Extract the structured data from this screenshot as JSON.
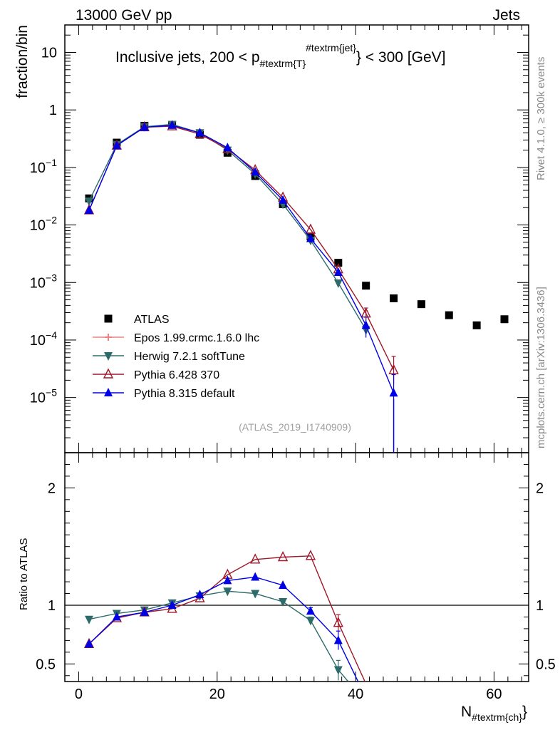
{
  "header": {
    "left": "13000 GeV pp",
    "right": "Jets"
  },
  "side_text": {
    "top": "Rivet 4.1.0, ≥ 300k events",
    "bottom": "mcplots.cern.ch [arXiv:1306.3436]"
  },
  "chart_data": {
    "type": "line",
    "title_main": "Inclusive jets, 200 < p",
    "title_sub": "#textrm{T}",
    "title_sup": "#textrm{jet}",
    "title_tail": "} < 300 [GeV]",
    "analysis_id": "(ATLAS_2019_I1740909)",
    "xlabel_main": "N",
    "xlabel_sub": "#textrm{ch}",
    "xlabel_tail": "}",
    "ylabel": "fraction/bin",
    "ratio_ylabel": "Ratio to ATLAS",
    "xlim": [
      -2,
      65
    ],
    "ylim": [
      1.1e-06,
      30
    ],
    "ratio_ylim": [
      0.35,
      2.3
    ],
    "x_ticks": [
      0,
      20,
      40,
      60
    ],
    "y_ticks": [
      {
        "value": 10,
        "base": "10",
        "exp": ""
      },
      {
        "value": 1,
        "base": "1",
        "exp": ""
      },
      {
        "value": 0.1,
        "base": "10",
        "exp": "−1"
      },
      {
        "value": 0.01,
        "base": "10",
        "exp": "−2"
      },
      {
        "value": 0.001,
        "base": "10",
        "exp": "−3"
      },
      {
        "value": 0.0001,
        "base": "10",
        "exp": "−4"
      },
      {
        "value": 1e-05,
        "base": "10",
        "exp": "−5"
      }
    ],
    "ratio_ticks": [
      {
        "value": 0.5,
        "label": "0.5"
      },
      {
        "value": 1,
        "label": "1"
      },
      {
        "value": 2,
        "label": "2"
      }
    ],
    "series": [
      {
        "name": "ATLAS",
        "color": "#000000",
        "marker": "square",
        "x": [
          1.5,
          5.5,
          9.5,
          13.5,
          17.5,
          21.5,
          25.5,
          29.5,
          33.5,
          37.5,
          41.5,
          45.5,
          49.5,
          53.5,
          57.5,
          61.5
        ],
        "y": [
          0.029,
          0.27,
          0.53,
          0.55,
          0.37,
          0.18,
          0.071,
          0.023,
          0.0063,
          0.0022,
          0.00088,
          0.00053,
          0.00042,
          0.00027,
          0.00018,
          0.00023
        ]
      },
      {
        "name": "Epos 1.99.crmc.1.6.0 lhc",
        "color": "#f08080",
        "marker": "cross",
        "x": [],
        "y": [],
        "ratio": []
      },
      {
        "name": "Herwig 7.2.1 softTune",
        "color": "#2d6b6b",
        "marker": "triangle-down",
        "x": [
          1.5,
          5.5,
          9.5,
          13.5,
          17.5,
          21.5,
          25.5,
          29.5,
          33.5,
          37.5,
          41.5
        ],
        "y": [
          0.026,
          0.25,
          0.51,
          0.56,
          0.4,
          0.2,
          0.077,
          0.023,
          0.0054,
          0.00098,
          0.00015
        ],
        "ratio": [
          0.88,
          0.93,
          0.96,
          1.02,
          1.08,
          1.12,
          1.1,
          1.03,
          0.87,
          0.45,
          0.17
        ]
      },
      {
        "name": "Pythia 6.428 370",
        "color": "#a0182b",
        "marker": "triangle-open",
        "x": [
          1.5,
          5.5,
          9.5,
          13.5,
          17.5,
          21.5,
          25.5,
          29.5,
          33.5,
          37.5,
          41.5,
          45.5
        ],
        "y": [
          0.018,
          0.24,
          0.5,
          0.52,
          0.38,
          0.21,
          0.09,
          0.03,
          0.0083,
          0.0017,
          0.00029,
          3e-05
        ],
        "ratio": [
          0.67,
          0.89,
          0.94,
          0.97,
          1.06,
          1.26,
          1.39,
          1.41,
          1.42,
          0.85,
          0.33,
          0.057
        ]
      },
      {
        "name": "Pythia 8.315 default",
        "color": "#0000e6",
        "marker": "triangle-up",
        "x": [
          1.5,
          5.5,
          9.5,
          13.5,
          17.5,
          21.5,
          25.5,
          29.5,
          33.5,
          37.5,
          41.5,
          45.5
        ],
        "y": [
          0.018,
          0.24,
          0.5,
          0.54,
          0.4,
          0.22,
          0.083,
          0.027,
          0.0058,
          0.0015,
          0.00018,
          1.2e-05
        ],
        "ratio": [
          0.67,
          0.9,
          0.94,
          1.0,
          1.09,
          1.21,
          1.24,
          1.17,
          0.95,
          0.7,
          0.21,
          0.023
        ]
      }
    ]
  }
}
